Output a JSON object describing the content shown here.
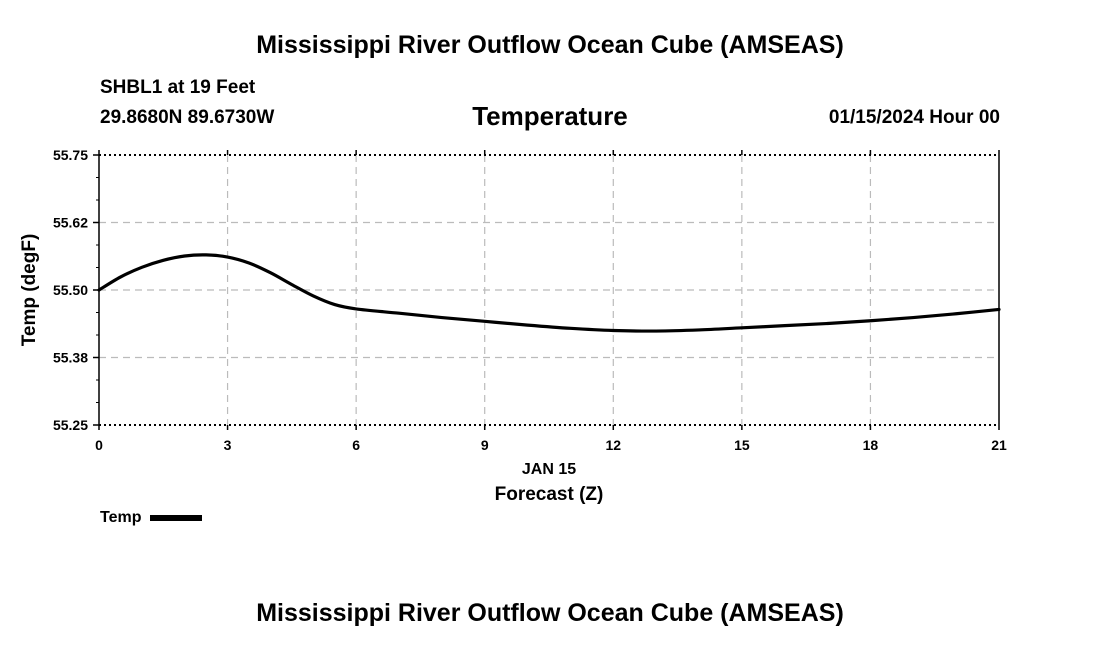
{
  "header": {
    "title": "Mississippi River Outflow Ocean Cube (AMSEAS)",
    "station": "SHBL1 at 19 Feet",
    "coords": "29.8680N  89.6730W",
    "datetime": "01/15/2024 Hour 00"
  },
  "footer": {
    "title": "Mississippi River Outflow Ocean Cube (AMSEAS)"
  },
  "chart_data": {
    "type": "line",
    "title": "Temperature",
    "xlabel": "Forecast (Z)",
    "xdate_label": "JAN 15",
    "ylabel": "Temp (degF)",
    "xlim": [
      0,
      21
    ],
    "ylim": [
      55.25,
      55.75
    ],
    "xticks": [
      0,
      3,
      6,
      9,
      12,
      15,
      18,
      21
    ],
    "xtick_labels": [
      "0",
      "3",
      "6",
      "9",
      "12",
      "15",
      "18",
      "21"
    ],
    "yticks": [
      55.25,
      55.375,
      55.5,
      55.625,
      55.75
    ],
    "ytick_labels": [
      "55.25",
      "55.38",
      "55.50",
      "55.62",
      "55.75"
    ],
    "grid": true,
    "legend": "bottom-left",
    "series": [
      {
        "name": "Temp",
        "color": "#000000",
        "x": [
          0,
          0.5,
          1,
          1.5,
          2,
          2.5,
          3,
          3.5,
          4,
          4.5,
          5,
          5.5,
          6,
          7,
          8,
          9,
          10,
          11,
          12,
          13,
          14,
          15,
          16,
          17,
          18,
          19,
          20,
          21
        ],
        "y": [
          55.5,
          55.524,
          55.542,
          55.555,
          55.563,
          55.565,
          55.561,
          55.55,
          55.532,
          55.51,
          55.489,
          55.473,
          55.465,
          55.457,
          55.449,
          55.442,
          55.435,
          55.429,
          55.425,
          55.424,
          55.426,
          55.43,
          55.434,
          55.438,
          55.443,
          55.449,
          55.456,
          55.464
        ]
      }
    ]
  }
}
